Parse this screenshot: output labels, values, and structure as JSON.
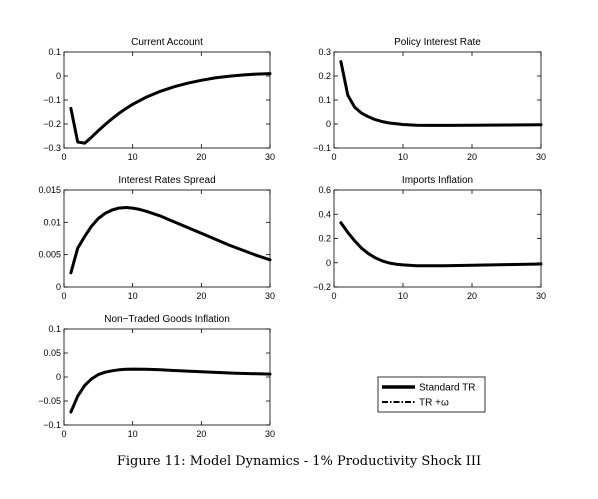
{
  "chart_data": [
    {
      "type": "line",
      "title": "Current Account",
      "xlim": [
        0,
        30
      ],
      "ylim": [
        -0.3,
        0.1
      ],
      "xticks": [
        0,
        10,
        20,
        30
      ],
      "xtick_labels": [
        "0",
        "10",
        "20",
        "30"
      ],
      "yticks": [
        -0.3,
        -0.2,
        -0.1,
        0,
        0.1
      ],
      "ytick_labels": [
        "−0.3",
        "−0.2",
        "−0.1",
        "0",
        "0.1"
      ],
      "series": [
        {
          "x": [
            1,
            2,
            3,
            4,
            5,
            6,
            7,
            8,
            9,
            10,
            12,
            14,
            16,
            18,
            20,
            22,
            24,
            26,
            28,
            30
          ],
          "y": [
            -0.135,
            -0.275,
            -0.28,
            -0.255,
            -0.228,
            -0.202,
            -0.178,
            -0.156,
            -0.136,
            -0.118,
            -0.088,
            -0.064,
            -0.045,
            -0.03,
            -0.018,
            -0.008,
            -0.001,
            0.004,
            0.008,
            0.01
          ]
        }
      ]
    },
    {
      "type": "line",
      "title": "Policy Interest Rate",
      "xlim": [
        0,
        30
      ],
      "ylim": [
        -0.1,
        0.3
      ],
      "xticks": [
        0,
        10,
        20,
        30
      ],
      "xtick_labels": [
        "0",
        "10",
        "20",
        "30"
      ],
      "yticks": [
        -0.1,
        0,
        0.1,
        0.2,
        0.3
      ],
      "ytick_labels": [
        "−0.1",
        "0",
        "0.1",
        "0.2",
        "0.3"
      ],
      "series": [
        {
          "x": [
            1,
            2,
            3,
            4,
            5,
            6,
            7,
            8,
            10,
            12,
            14,
            16,
            20,
            25,
            30
          ],
          "y": [
            0.26,
            0.12,
            0.07,
            0.045,
            0.03,
            0.018,
            0.01,
            0.004,
            -0.002,
            -0.005,
            -0.006,
            -0.006,
            -0.005,
            -0.004,
            -0.003
          ]
        }
      ]
    },
    {
      "type": "line",
      "title": "Interest Rates Spread",
      "xlim": [
        0,
        30
      ],
      "ylim": [
        0,
        0.015
      ],
      "xticks": [
        0,
        10,
        20,
        30
      ],
      "xtick_labels": [
        "0",
        "10",
        "20",
        "30"
      ],
      "yticks": [
        0,
        0.005,
        0.01,
        0.015
      ],
      "ytick_labels": [
        "0",
        "0.005",
        "0.01",
        "0.015"
      ],
      "series": [
        {
          "x": [
            1,
            2,
            3,
            4,
            5,
            6,
            7,
            8,
            9,
            10,
            11,
            12,
            14,
            16,
            18,
            20,
            22,
            24,
            26,
            28,
            30
          ],
          "y": [
            0.0022,
            0.006,
            0.0078,
            0.0094,
            0.0106,
            0.0114,
            0.0119,
            0.0122,
            0.0123,
            0.0122,
            0.012,
            0.0117,
            0.011,
            0.0101,
            0.0092,
            0.0083,
            0.0074,
            0.0065,
            0.0057,
            0.0049,
            0.0042
          ]
        }
      ]
    },
    {
      "type": "line",
      "title": "Imports Inflation",
      "xlim": [
        0,
        30
      ],
      "ylim": [
        -0.2,
        0.6
      ],
      "xticks": [
        0,
        10,
        20,
        30
      ],
      "xtick_labels": [
        "0",
        "10",
        "20",
        "30"
      ],
      "yticks": [
        -0.2,
        0,
        0.2,
        0.4,
        0.6
      ],
      "ytick_labels": [
        "−0.2",
        "0",
        "0.2",
        "0.4",
        "0.6"
      ],
      "series": [
        {
          "x": [
            1,
            2,
            3,
            4,
            5,
            6,
            7,
            8,
            9,
            10,
            12,
            14,
            16,
            20,
            25,
            30
          ],
          "y": [
            0.33,
            0.25,
            0.18,
            0.12,
            0.075,
            0.04,
            0.015,
            -0.002,
            -0.012,
            -0.018,
            -0.024,
            -0.025,
            -0.024,
            -0.02,
            -0.015,
            -0.01
          ]
        }
      ]
    },
    {
      "type": "line",
      "title": "Non−Traded Goods Inflation",
      "xlim": [
        0,
        30
      ],
      "ylim": [
        -0.1,
        0.1
      ],
      "xticks": [
        0,
        10,
        20,
        30
      ],
      "xtick_labels": [
        "0",
        "10",
        "20",
        "30"
      ],
      "yticks": [
        -0.1,
        -0.05,
        0,
        0.05,
        0.1
      ],
      "ytick_labels": [
        "−0.1",
        "−0.05",
        "0",
        "0.05",
        "0.1"
      ],
      "series": [
        {
          "x": [
            1,
            2,
            3,
            4,
            5,
            6,
            7,
            8,
            9,
            10,
            12,
            14,
            16,
            20,
            25,
            30
          ],
          "y": [
            -0.073,
            -0.04,
            -0.018,
            -0.004,
            0.005,
            0.01,
            0.013,
            0.015,
            0.016,
            0.0165,
            0.016,
            0.015,
            0.0135,
            0.011,
            0.008,
            0.006
          ]
        }
      ]
    }
  ],
  "legend": {
    "items": [
      {
        "label": "Standard TR",
        "style": "solid"
      },
      {
        "label": "TR +ω",
        "style": "dashdot"
      }
    ]
  },
  "caption": "Figure 11: Model Dynamics - 1% Productivity Shock III"
}
